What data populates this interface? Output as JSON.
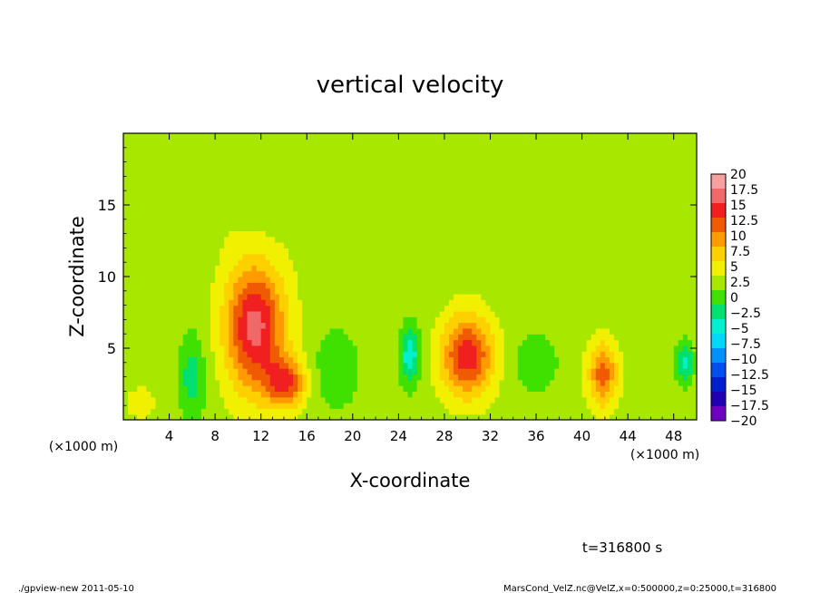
{
  "chart_data": {
    "type": "heatmap",
    "title": "vertical velocity",
    "xlabel": "X-coordinate",
    "ylabel": "Z-coordinate",
    "x_unit_left": "(×1000 m)",
    "x_unit_right": "(×1000 m)",
    "xlim": [
      0,
      50
    ],
    "ylim": [
      0,
      20
    ],
    "x_ticks": [
      4,
      8,
      12,
      16,
      20,
      24,
      28,
      32,
      36,
      40,
      44,
      48
    ],
    "x_tick_labels": [
      "4",
      "8",
      "12",
      "16",
      "20",
      "24",
      "28",
      "32",
      "36",
      "40",
      "44",
      "48"
    ],
    "y_ticks": [
      5,
      10,
      15
    ],
    "y_tick_labels": [
      "5",
      "10",
      "15"
    ],
    "colorbar": {
      "labels": [
        "20",
        "17.5",
        "15",
        "12.5",
        "10",
        "7.5",
        "5",
        "2.5",
        "0",
        "−2.5",
        "−5",
        "−7.5",
        "−10",
        "−12.5",
        "−15",
        "−17.5",
        "−20"
      ],
      "colors": [
        "#f8a0a0",
        "#f06868",
        "#f02020",
        "#f05a00",
        "#ff9a00",
        "#ffd000",
        "#f0f000",
        "#a8e800",
        "#40e000",
        "#00e070",
        "#00f0d0",
        "#00d8ff",
        "#0090ff",
        "#0050f0",
        "#0020d0",
        "#2000b0",
        "#7000c0"
      ]
    },
    "features": [
      {
        "x": 11.5,
        "z": 6.5,
        "sx": 1.8,
        "sz": 3.2,
        "value": 15
      },
      {
        "x": 14.2,
        "z": 2.6,
        "sx": 1.2,
        "sz": 1.2,
        "value": 11
      },
      {
        "x": 30.0,
        "z": 4.5,
        "sx": 1.6,
        "sz": 2.0,
        "value": 13
      },
      {
        "x": 41.8,
        "z": 3.2,
        "sx": 0.9,
        "sz": 1.6,
        "value": 10
      },
      {
        "x": 25.0,
        "z": 4.5,
        "sx": 0.6,
        "sz": 1.4,
        "value": -8
      },
      {
        "x": 49.0,
        "z": 4.0,
        "sx": 0.5,
        "sz": 1.0,
        "value": -7
      },
      {
        "x": 6.0,
        "z": 3.0,
        "sx": 0.8,
        "sz": 2.0,
        "value": -5
      },
      {
        "x": 18.5,
        "z": 3.5,
        "sx": 1.5,
        "sz": 2.0,
        "value": -3
      },
      {
        "x": 36.0,
        "z": 4.0,
        "sx": 1.4,
        "sz": 1.5,
        "value": -3
      },
      {
        "x": 1.5,
        "z": 1.2,
        "sx": 1.0,
        "sz": 0.8,
        "value": 3
      }
    ],
    "time_label": "t=316800 s"
  },
  "footer": {
    "left": "./gpview-new  2011-05-10",
    "right": "MarsCond_VelZ.nc@VelZ,x=0:500000,z=0:25000,t=316800"
  }
}
